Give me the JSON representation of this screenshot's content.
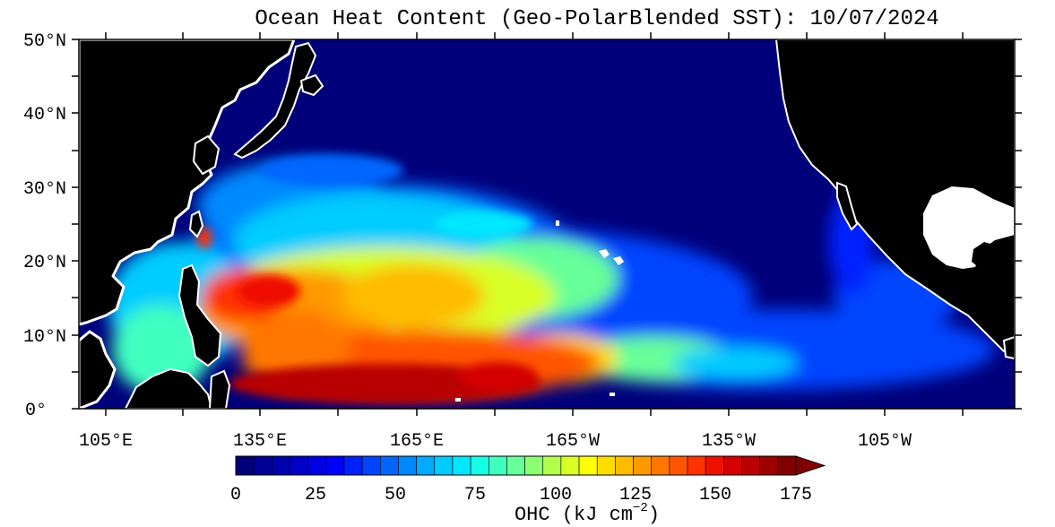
{
  "title": "Ocean Heat Content (Geo-PolarBlended SST): 10/07/2024",
  "lat_labels": [
    "50°N",
    "40°N",
    "30°N",
    "20°N",
    "10°N",
    "0°"
  ],
  "lon_labels": [
    "105°E",
    "135°E",
    "165°E",
    "165°W",
    "135°W",
    "105°W"
  ],
  "colorbar": {
    "ticks": [
      "0",
      "25",
      "50",
      "75",
      "100",
      "125",
      "150",
      "175"
    ],
    "unit_main": "OHC (kJ cm",
    "unit_exp": "−2",
    "unit_close": ")",
    "colors": [
      "#00007a",
      "#000094",
      "#0000ad",
      "#0000c8",
      "#0000e2",
      "#0000fb",
      "#0022ff",
      "#0044ff",
      "#0066ff",
      "#0088ff",
      "#00aaff",
      "#00ccff",
      "#00e8ff",
      "#15ffe6",
      "#40ffbf",
      "#66ff99",
      "#8cff73",
      "#b3ff4d",
      "#d9ff26",
      "#ffff00",
      "#ffdd00",
      "#ffbb00",
      "#ff9900",
      "#ff7700",
      "#ff5500",
      "#ff3300",
      "#ee1100",
      "#d40000",
      "#b80000",
      "#9c0000",
      "#800000"
    ]
  },
  "map": {
    "land_color": "#000000",
    "missing_color": "#ffffff",
    "low_ohc_color": "#00007a"
  }
}
